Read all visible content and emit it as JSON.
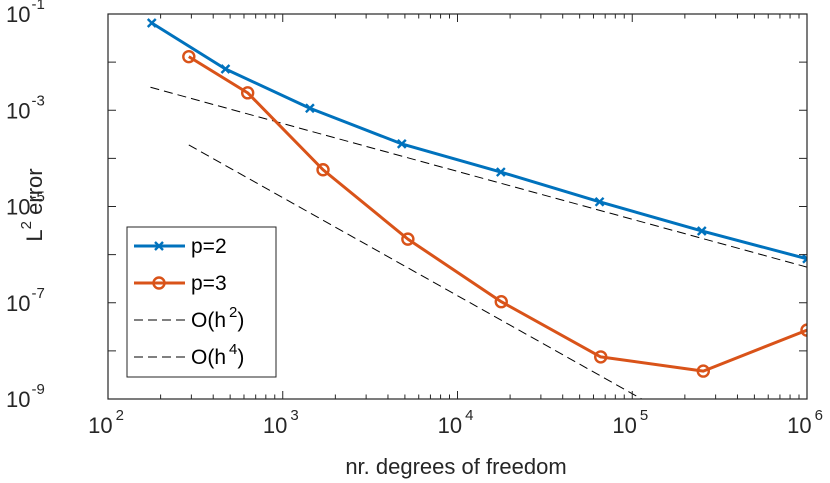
{
  "chart_data": {
    "type": "line",
    "xscale": "log",
    "yscale": "log",
    "xlim": [
      100,
      1000000
    ],
    "ylim": [
      1e-09,
      0.1
    ],
    "xlabel": "nr. degrees of freedom",
    "ylabel": {
      "base": "L",
      "sup": "2",
      "rest": " error"
    },
    "xticks": [
      {
        "value": 100,
        "base": "10",
        "exp": "2"
      },
      {
        "value": 1000,
        "base": "10",
        "exp": "3"
      },
      {
        "value": 10000,
        "base": "10",
        "exp": "4"
      },
      {
        "value": 100000,
        "base": "10",
        "exp": "5"
      },
      {
        "value": 1000000,
        "base": "10",
        "exp": "6"
      }
    ],
    "yticks": [
      {
        "value": 1e-09,
        "base": "10",
        "exp": "-9"
      },
      {
        "value": 1e-07,
        "base": "10",
        "exp": "-7"
      },
      {
        "value": 1e-05,
        "base": "10",
        "exp": "-5"
      },
      {
        "value": 0.001,
        "base": "10",
        "exp": "-3"
      },
      {
        "value": 0.1,
        "base": "10",
        "exp": "-1"
      }
    ],
    "grid": false,
    "legend_position": "bottom-left",
    "series": [
      {
        "name": "p=2",
        "color": "#0072BD",
        "marker": "x",
        "style": "solid",
        "x": [
          178,
          470,
          1430,
          4800,
          17700,
          65000,
          250000,
          1000000
        ],
        "y": [
          0.065,
          0.0072,
          0.0011,
          0.0002,
          5.2e-05,
          1.25e-05,
          3.1e-06,
          8.2e-07
        ]
      },
      {
        "name": "p=3",
        "color": "#D95319",
        "marker": "o",
        "style": "solid",
        "x": [
          290,
          630,
          1700,
          5200,
          17800,
          66000,
          255000,
          1000000
        ],
        "y": [
          0.013,
          0.0023,
          5.8e-05,
          2.1e-06,
          1.05e-07,
          7.5e-09,
          3.8e-09,
          2.7e-08
        ]
      },
      {
        "name": "O(h^2)",
        "label": {
          "base": "O(h",
          "sup": "2",
          "close": ")"
        },
        "color": "#000000",
        "marker": "none",
        "style": "dashed",
        "x": [
          175,
          1000000
        ],
        "y": [
          0.003,
          5.5e-07
        ]
      },
      {
        "name": "O(h^4)",
        "label": {
          "base": "O(h",
          "sup": "4",
          "close": ")"
        },
        "color": "#000000",
        "marker": "none",
        "style": "dashed",
        "x": [
          290,
          120000
        ],
        "y": [
          0.00019,
          8.9e-10
        ]
      }
    ]
  }
}
